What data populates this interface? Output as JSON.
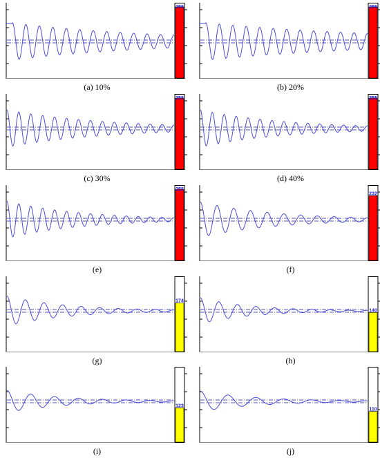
{
  "chart_data": [
    {
      "type": "line",
      "caption": "(a) 10%",
      "bar_value": 255,
      "bar_max": 255,
      "bar_color": "#ff0000",
      "osc_cycles": 12,
      "decay": 0.09,
      "amplitude": 1.0,
      "baseline_shift": true
    },
    {
      "type": "line",
      "caption": "(b) 20%",
      "bar_value": 255,
      "bar_max": 255,
      "bar_color": "#ff0000",
      "osc_cycles": 12,
      "decay": 0.07,
      "amplitude": 1.0,
      "baseline_shift": true
    },
    {
      "type": "line",
      "caption": "(c) 30%",
      "bar_value": 255,
      "bar_max": 255,
      "bar_color": "#ff0000",
      "osc_cycles": 14,
      "decay": 0.12,
      "amplitude": 1.0,
      "baseline_shift": false
    },
    {
      "type": "line",
      "caption": "(d) 40%",
      "bar_value": 255,
      "bar_max": 255,
      "bar_color": "#ff0000",
      "osc_cycles": 14,
      "decay": 0.14,
      "amplitude": 1.0,
      "baseline_shift": false
    },
    {
      "type": "line",
      "caption": "(e)",
      "bar_value": 255,
      "bar_max": 255,
      "bar_color": "#ff0000",
      "osc_cycles": 14,
      "decay": 0.16,
      "amplitude": 1.0,
      "baseline_shift": false
    },
    {
      "type": "line",
      "caption": "(f)",
      "bar_value": 232,
      "bar_max": 255,
      "bar_color": "#ff0000",
      "osc_cycles": 10,
      "decay": 0.22,
      "amplitude": 0.95,
      "baseline_shift": false
    },
    {
      "type": "line",
      "caption": "(g)",
      "bar_value": 174,
      "bar_max": 255,
      "bar_color": "#ffff00",
      "osc_cycles": 9,
      "decay": 0.3,
      "amplitude": 0.8,
      "baseline_shift": false
    },
    {
      "type": "line",
      "caption": "(h)",
      "bar_value": 140,
      "bar_max": 255,
      "bar_color": "#ffff00",
      "osc_cycles": 9,
      "decay": 0.36,
      "amplitude": 0.7,
      "baseline_shift": false
    },
    {
      "type": "line",
      "caption": "(i)",
      "bar_value": 123,
      "bar_max": 255,
      "bar_color": "#ffff00",
      "osc_cycles": 7,
      "decay": 0.42,
      "amplitude": 0.6,
      "baseline_shift": false
    },
    {
      "type": "line",
      "caption": "(j)",
      "bar_value": 110,
      "bar_max": 255,
      "bar_color": "#ffff00",
      "osc_cycles": 6,
      "decay": 0.48,
      "amplitude": 0.55,
      "baseline_shift": false
    }
  ],
  "colors": {
    "signal": "#4a4ad8",
    "reference": "#1a1aa0",
    "bar_label": "#1a1ad8",
    "frame": "#000000"
  }
}
